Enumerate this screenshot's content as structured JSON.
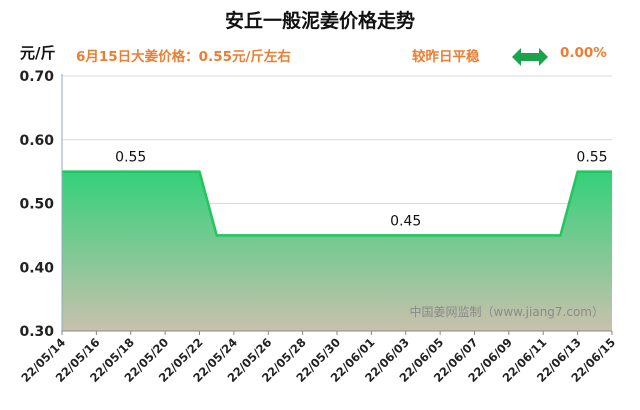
{
  "chart_data": {
    "type": "area",
    "title": "安丘一般泥姜价格走势",
    "ylabel": "元/斤",
    "ylim": [
      0.3,
      0.7
    ],
    "yticks": [
      "0.30",
      "0.40",
      "0.50",
      "0.60",
      "0.70"
    ],
    "x": [
      "22/05/14",
      "22/05/15",
      "22/05/16",
      "22/05/17",
      "22/05/18",
      "22/05/19",
      "22/05/20",
      "22/05/21",
      "22/05/22",
      "22/05/23",
      "22/05/24",
      "22/05/25",
      "22/05/26",
      "22/05/27",
      "22/05/28",
      "22/05/29",
      "22/05/30",
      "22/05/31",
      "22/06/01",
      "22/06/02",
      "22/06/03",
      "22/06/04",
      "22/06/05",
      "22/06/06",
      "22/06/07",
      "22/06/08",
      "22/06/09",
      "22/06/10",
      "22/06/11",
      "22/06/12",
      "22/06/13",
      "22/06/14",
      "22/06/15"
    ],
    "xticks": [
      "22/05/14",
      "22/05/16",
      "22/05/18",
      "22/05/20",
      "22/05/22",
      "22/05/24",
      "22/05/26",
      "22/05/28",
      "22/05/30",
      "22/06/01",
      "22/06/03",
      "22/06/05",
      "22/06/07",
      "22/06/09",
      "22/06/11",
      "22/06/13",
      "22/06/15"
    ],
    "values": [
      0.55,
      0.55,
      0.55,
      0.55,
      0.55,
      0.55,
      0.55,
      0.55,
      0.55,
      0.45,
      0.45,
      0.45,
      0.45,
      0.45,
      0.45,
      0.45,
      0.45,
      0.45,
      0.45,
      0.45,
      0.45,
      0.45,
      0.45,
      0.45,
      0.45,
      0.45,
      0.45,
      0.45,
      0.45,
      0.45,
      0.55,
      0.55,
      0.55
    ],
    "data_labels": [
      {
        "index": 4,
        "text": "0.55"
      },
      {
        "index": 20,
        "text": "0.45"
      },
      {
        "index": 32,
        "text": "0.55"
      }
    ],
    "grid": true,
    "colors": {
      "line": "#22c55e",
      "fill_top": "#33d17a",
      "fill_bottom": "#c9c1ad"
    }
  },
  "header": {
    "price_note": "6月15日大姜价格：0.55元/斤左右",
    "compare_label": "较昨日平稳",
    "compare_value": "0.00%",
    "compare_icon": "double-arrow-icon",
    "arrow_color": "#1aa34a"
  },
  "watermark": "中国姜网监制（www.jiang7.com）"
}
